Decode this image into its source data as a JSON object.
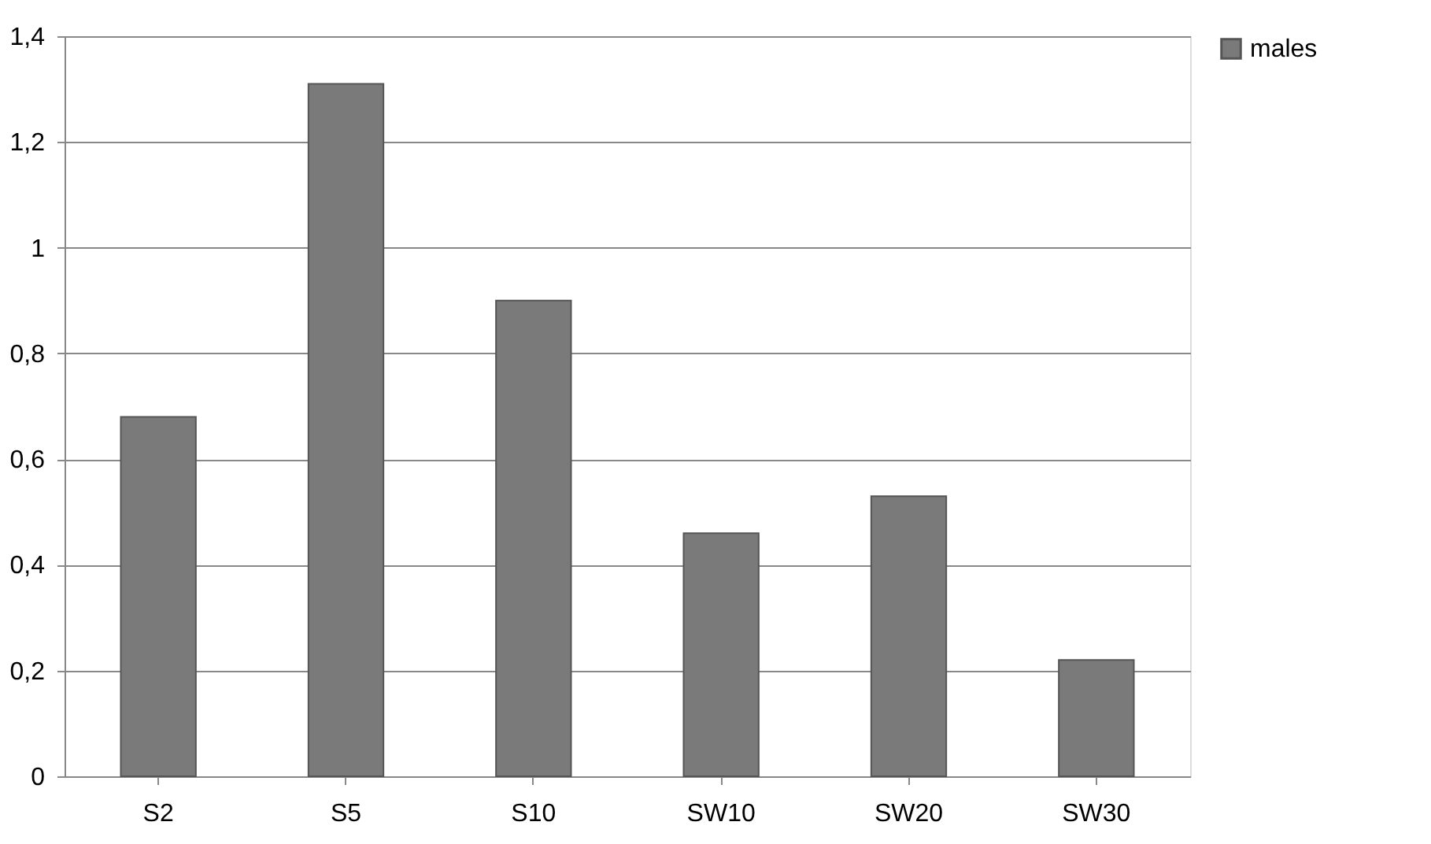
{
  "chart_data": {
    "type": "bar",
    "categories": [
      "S2",
      "S5",
      "S10",
      "SW10",
      "SW20",
      "SW30"
    ],
    "series": [
      {
        "name": "males",
        "color": "#7a7a7a",
        "values": [
          0.68,
          1.31,
          0.9,
          0.46,
          0.53,
          0.22
        ]
      }
    ],
    "ylim": [
      0,
      1.4
    ],
    "yticks": [
      0,
      {
        "value": 0.2,
        "label": "0,2"
      },
      {
        "value": 0.4,
        "label": "0,4"
      },
      {
        "value": 0.6,
        "label": "0,6"
      },
      {
        "value": 0.8,
        "label": "0,8"
      },
      1,
      {
        "value": 1.2,
        "label": "1,2"
      },
      {
        "value": 1.4,
        "label": "1,4"
      }
    ],
    "grid": "y",
    "legend": "right"
  }
}
